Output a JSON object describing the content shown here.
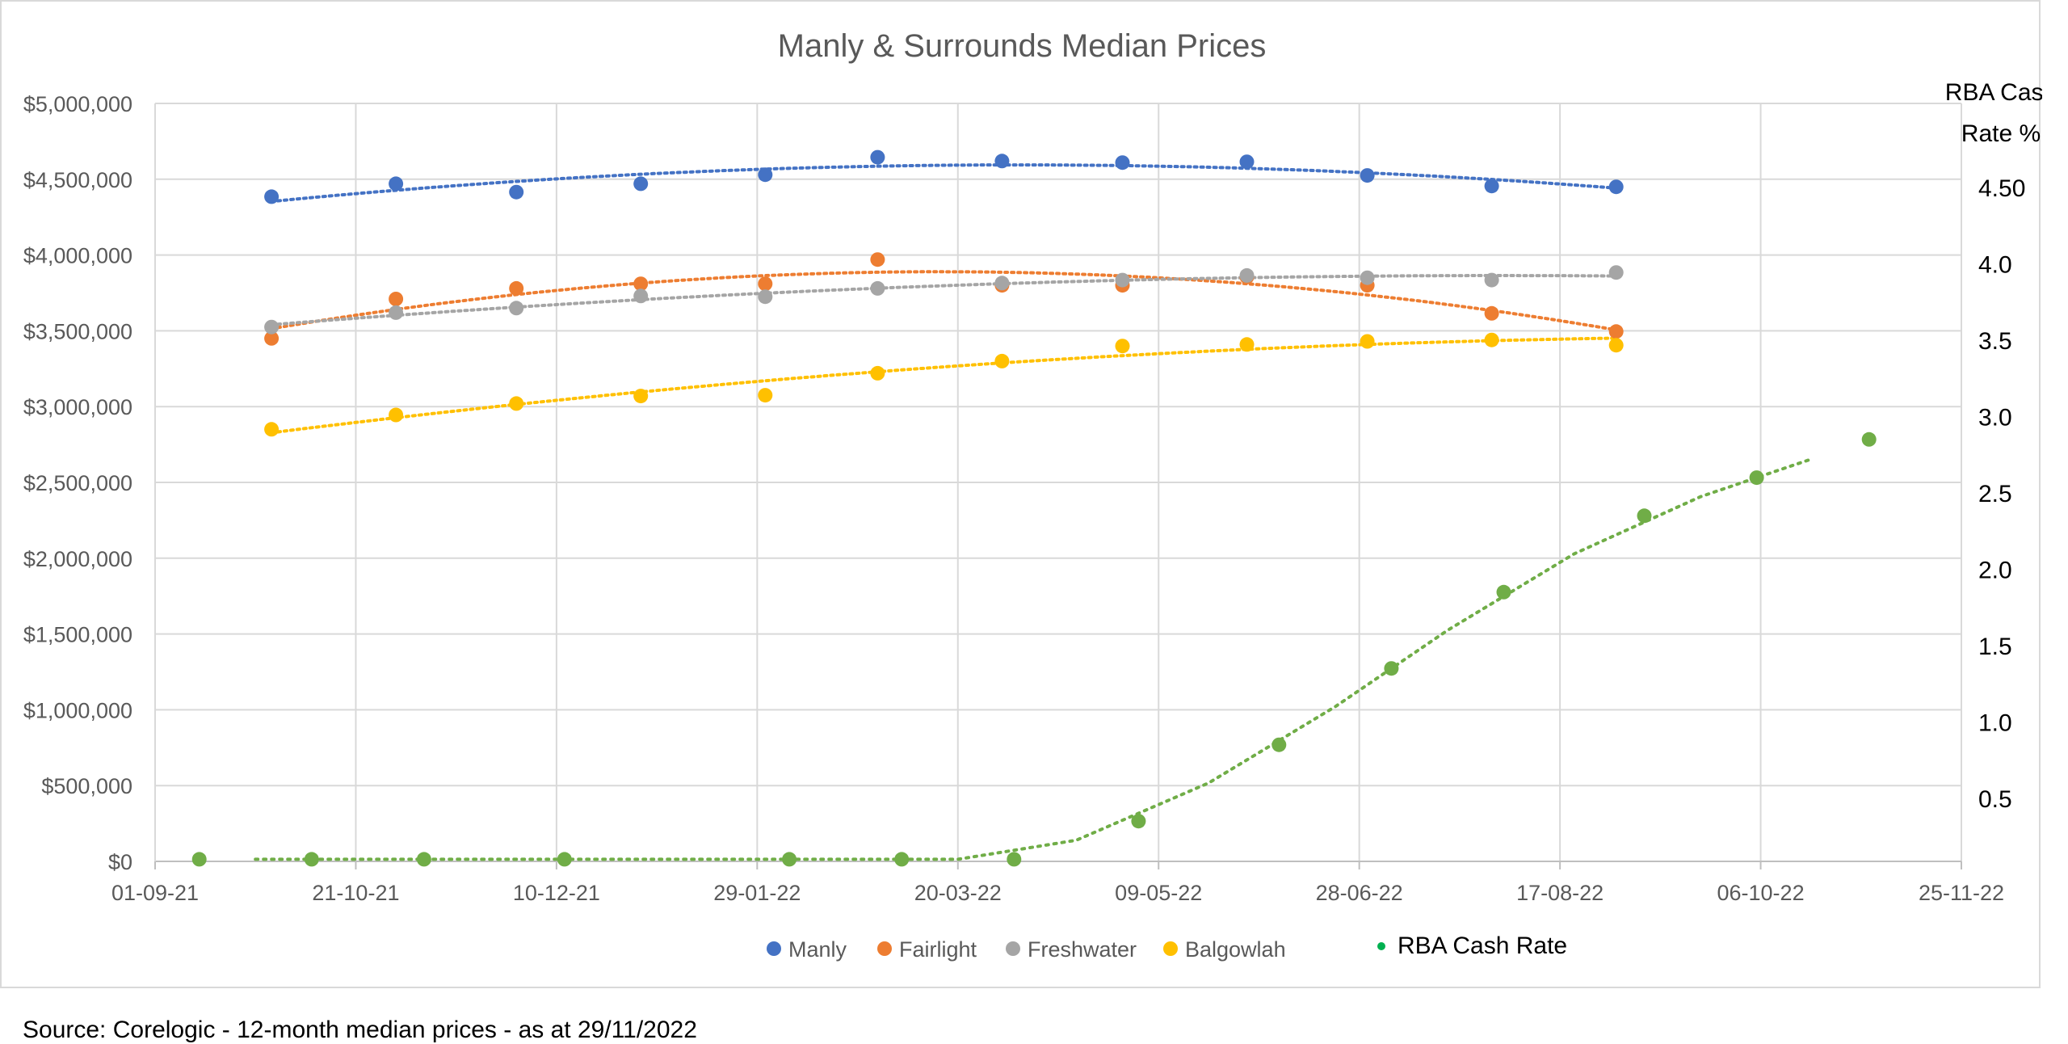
{
  "source_note": "Source: Corelogic - 12-month median prices - as at 29/11/2022",
  "chart_data": {
    "type": "scatter",
    "title": "Manly & Surrounds Median Prices",
    "xlabel": "",
    "ylabel": "",
    "y2label_lines": [
      "RBA Cash",
      "Rate %"
    ],
    "x_tick_labels": [
      "01-09-21",
      "21-10-21",
      "10-12-21",
      "29-01-22",
      "20-03-22",
      "09-05-22",
      "28-06-22",
      "17-08-22",
      "06-10-22",
      "25-11-22"
    ],
    "x_tick_dates": [
      "2021-09-01",
      "2021-10-21",
      "2021-12-10",
      "2022-01-29",
      "2022-03-20",
      "2022-05-09",
      "2022-06-28",
      "2022-08-17",
      "2022-10-06",
      "2022-11-25"
    ],
    "xlim": [
      "2021-09-01",
      "2022-11-25"
    ],
    "ylim": [
      0,
      5000000
    ],
    "y_tick_values": [
      0,
      500000,
      1000000,
      1500000,
      2000000,
      2500000,
      3000000,
      3500000,
      4000000,
      4500000,
      5000000
    ],
    "y_tick_labels": [
      "$0",
      "$500,000",
      "$1,000,000",
      "$1,500,000",
      "$2,000,000",
      "$2,500,000",
      "$3,000,000",
      "$3,500,000",
      "$4,000,000",
      "$4,500,000",
      "$5,000,000"
    ],
    "y2_ticks": [
      {
        "value": 0.5,
        "label": "0.5"
      },
      {
        "value": 1.0,
        "label": "1.0"
      },
      {
        "value": 1.5,
        "label": "1.5"
      },
      {
        "value": 2.0,
        "label": "2.0"
      },
      {
        "value": 2.5,
        "label": "2.5"
      },
      {
        "value": 3.0,
        "label": "3.0"
      },
      {
        "value": 3.5,
        "label": "3.5"
      },
      {
        "value": 4.0,
        "label": "4.0"
      },
      {
        "value": 4.5,
        "label": "4.50"
      }
    ],
    "y2lim": [
      0,
      4.5
    ],
    "grid": true,
    "legend_position": "bottom",
    "trendlines": "dotted polynomial",
    "series": [
      {
        "name": "Manly",
        "color": "#4472c4",
        "axis": "left",
        "x": [
          "2021-09-30",
          "2021-10-31",
          "2021-11-30",
          "2021-12-31",
          "2022-01-31",
          "2022-02-28",
          "2022-03-31",
          "2022-04-30",
          "2022-05-31",
          "2022-06-30",
          "2022-07-31",
          "2022-08-31"
        ],
        "y": [
          4385000,
          4470000,
          4415000,
          4470000,
          4530000,
          4645000,
          4620000,
          4610000,
          4615000,
          4525000,
          4455000,
          4450000
        ]
      },
      {
        "name": "Fairlight",
        "color": "#ed7d31",
        "axis": "left",
        "x": [
          "2021-09-30",
          "2021-10-31",
          "2021-11-30",
          "2021-12-31",
          "2022-01-31",
          "2022-02-28",
          "2022-03-31",
          "2022-04-30",
          "2022-05-31",
          "2022-06-30",
          "2022-07-31",
          "2022-08-31"
        ],
        "y": [
          3450000,
          3710000,
          3780000,
          3810000,
          3810000,
          3970000,
          3800000,
          3800000,
          3855000,
          3800000,
          3615000,
          3495000
        ]
      },
      {
        "name": "Freshwater",
        "color": "#a5a5a5",
        "axis": "left",
        "x": [
          "2021-09-30",
          "2021-10-31",
          "2021-11-30",
          "2021-12-31",
          "2022-01-31",
          "2022-02-28",
          "2022-03-31",
          "2022-04-30",
          "2022-05-31",
          "2022-06-30",
          "2022-07-31",
          "2022-08-31"
        ],
        "y": [
          3525000,
          3620000,
          3650000,
          3730000,
          3725000,
          3780000,
          3815000,
          3835000,
          3865000,
          3850000,
          3835000,
          3885000
        ]
      },
      {
        "name": "Balgowlah",
        "color": "#ffc000",
        "axis": "left",
        "x": [
          "2021-09-30",
          "2021-10-31",
          "2021-11-30",
          "2021-12-31",
          "2022-01-31",
          "2022-02-28",
          "2022-03-31",
          "2022-04-30",
          "2022-05-31",
          "2022-06-30",
          "2022-07-31",
          "2022-08-31"
        ],
        "y": [
          2850000,
          2945000,
          3020000,
          3070000,
          3075000,
          3220000,
          3300000,
          3400000,
          3410000,
          3430000,
          3440000,
          3405000
        ]
      },
      {
        "name": "RBA Cash Rate",
        "color": "#70ad47",
        "axis": "right",
        "x": [
          "2021-09-12",
          "2021-10-10",
          "2021-11-07",
          "2021-12-12",
          "2022-02-06",
          "2022-03-06",
          "2022-04-03",
          "2022-05-04",
          "2022-06-08",
          "2022-07-06",
          "2022-08-03",
          "2022-09-07",
          "2022-10-05",
          "2022-11-02"
        ],
        "y": [
          0.1,
          0.1,
          0.1,
          0.1,
          0.1,
          0.1,
          0.1,
          0.35,
          0.85,
          1.35,
          1.85,
          2.35,
          2.6,
          2.85
        ]
      }
    ]
  }
}
